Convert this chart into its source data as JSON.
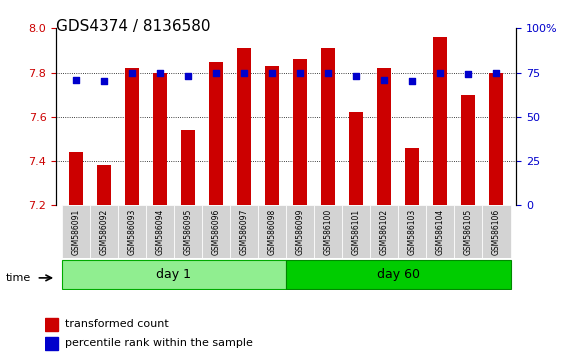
{
  "title": "GDS4374 / 8136580",
  "samples": [
    "GSM586091",
    "GSM586092",
    "GSM586093",
    "GSM586094",
    "GSM586095",
    "GSM586096",
    "GSM586097",
    "GSM586098",
    "GSM586099",
    "GSM586100",
    "GSM586101",
    "GSM586102",
    "GSM586103",
    "GSM586104",
    "GSM586105",
    "GSM586106"
  ],
  "bar_values": [
    7.44,
    7.38,
    7.82,
    7.8,
    7.54,
    7.85,
    7.91,
    7.83,
    7.86,
    7.91,
    7.62,
    7.82,
    7.46,
    7.96,
    7.7,
    7.8
  ],
  "dot_values": [
    71,
    70,
    75,
    74.5,
    73,
    75,
    75,
    75,
    75,
    75,
    73,
    71,
    70,
    75,
    74,
    75
  ],
  "ylim_left": [
    7.2,
    8.0
  ],
  "ylim_right": [
    0,
    100
  ],
  "yticks_left": [
    7.2,
    7.4,
    7.6,
    7.8,
    8.0
  ],
  "yticks_right": [
    0,
    25,
    50,
    75,
    100
  ],
  "ytick_labels_right": [
    "0",
    "25",
    "50",
    "75",
    "100%"
  ],
  "grid_yticks": [
    7.4,
    7.6,
    7.8
  ],
  "bar_color": "#CC0000",
  "dot_color": "#0000CC",
  "grid_color": "#000000",
  "bg_color": "#FFFFFF",
  "day1_color": "#90EE90",
  "day60_color": "#00CC00",
  "day1_samples": 8,
  "day60_samples": 8,
  "xlabel_day1": "day 1",
  "xlabel_day60": "day 60",
  "time_label": "time",
  "legend_bar": "transformed count",
  "legend_dot": "percentile rank within the sample",
  "tick_label_color_left": "#CC0000",
  "tick_label_color_right": "#0000CC",
  "bar_width": 0.5
}
